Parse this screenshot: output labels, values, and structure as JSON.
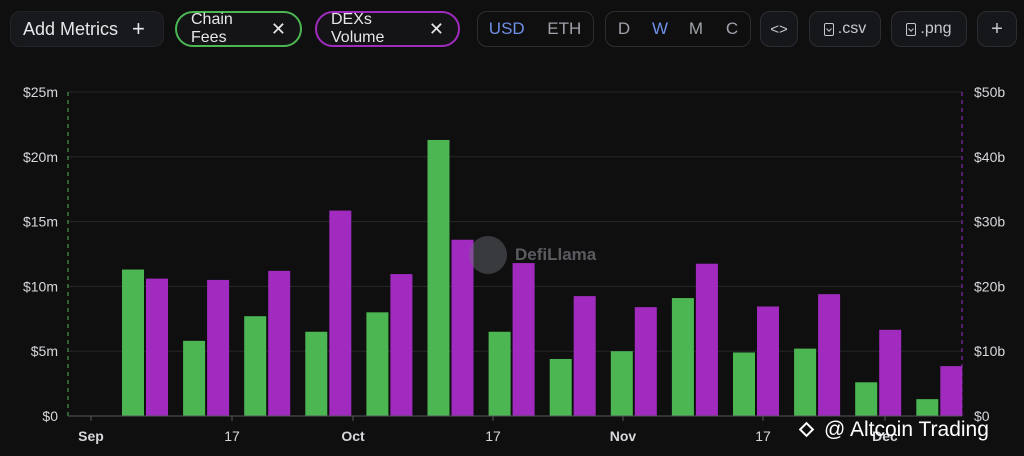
{
  "toolbar": {
    "add_metrics_label": "Add Metrics",
    "add_metrics_icon": "+",
    "chips": [
      {
        "label": "Chain Fees",
        "color": "#4cb752"
      },
      {
        "label": "DEXs Volume",
        "color": "#a12bbf"
      }
    ],
    "chip_close_icon": "✕",
    "currency_options": [
      "USD",
      "ETH"
    ],
    "currency_selected": "USD",
    "period_options": [
      "D",
      "W",
      "M",
      "C"
    ],
    "period_selected": "W",
    "embed_icon": "<>",
    "csv_label": ".csv",
    "png_label": ".png",
    "add_chart_icon": "+"
  },
  "watermarks": {
    "logo_text": "DefiLlama",
    "overlay_text": "@ Altcoin Trading"
  },
  "chart_data": {
    "type": "bar",
    "x_ticks": [
      "Sep",
      "17",
      "Oct",
      "17",
      "Nov",
      "17",
      "Dec"
    ],
    "y_left_ticks": [
      "$0",
      "$5m",
      "$10m",
      "$15m",
      "$20m",
      "$25m"
    ],
    "y_right_ticks": [
      "$0",
      "$10b",
      "$20b",
      "$30b",
      "$40b",
      "$50b"
    ],
    "ylim_left": [
      0,
      25
    ],
    "ylim_right": [
      0,
      50
    ],
    "grid": true,
    "series": [
      {
        "name": "Chain Fees",
        "axis": "left",
        "unit": "$m",
        "color": "#4cb752",
        "values": [
          11.3,
          5.8,
          7.7,
          6.5,
          8.0,
          21.3,
          6.5,
          4.4,
          5.0,
          9.1,
          4.9,
          5.2,
          2.6,
          1.3
        ]
      },
      {
        "name": "DEXs Volume",
        "axis": "right",
        "unit": "$b",
        "color": "#a12bbf",
        "values": [
          21.2,
          21.0,
          22.4,
          31.7,
          21.9,
          27.2,
          23.6,
          18.5,
          16.8,
          23.5,
          16.9,
          18.8,
          13.3,
          7.7
        ]
      }
    ]
  }
}
